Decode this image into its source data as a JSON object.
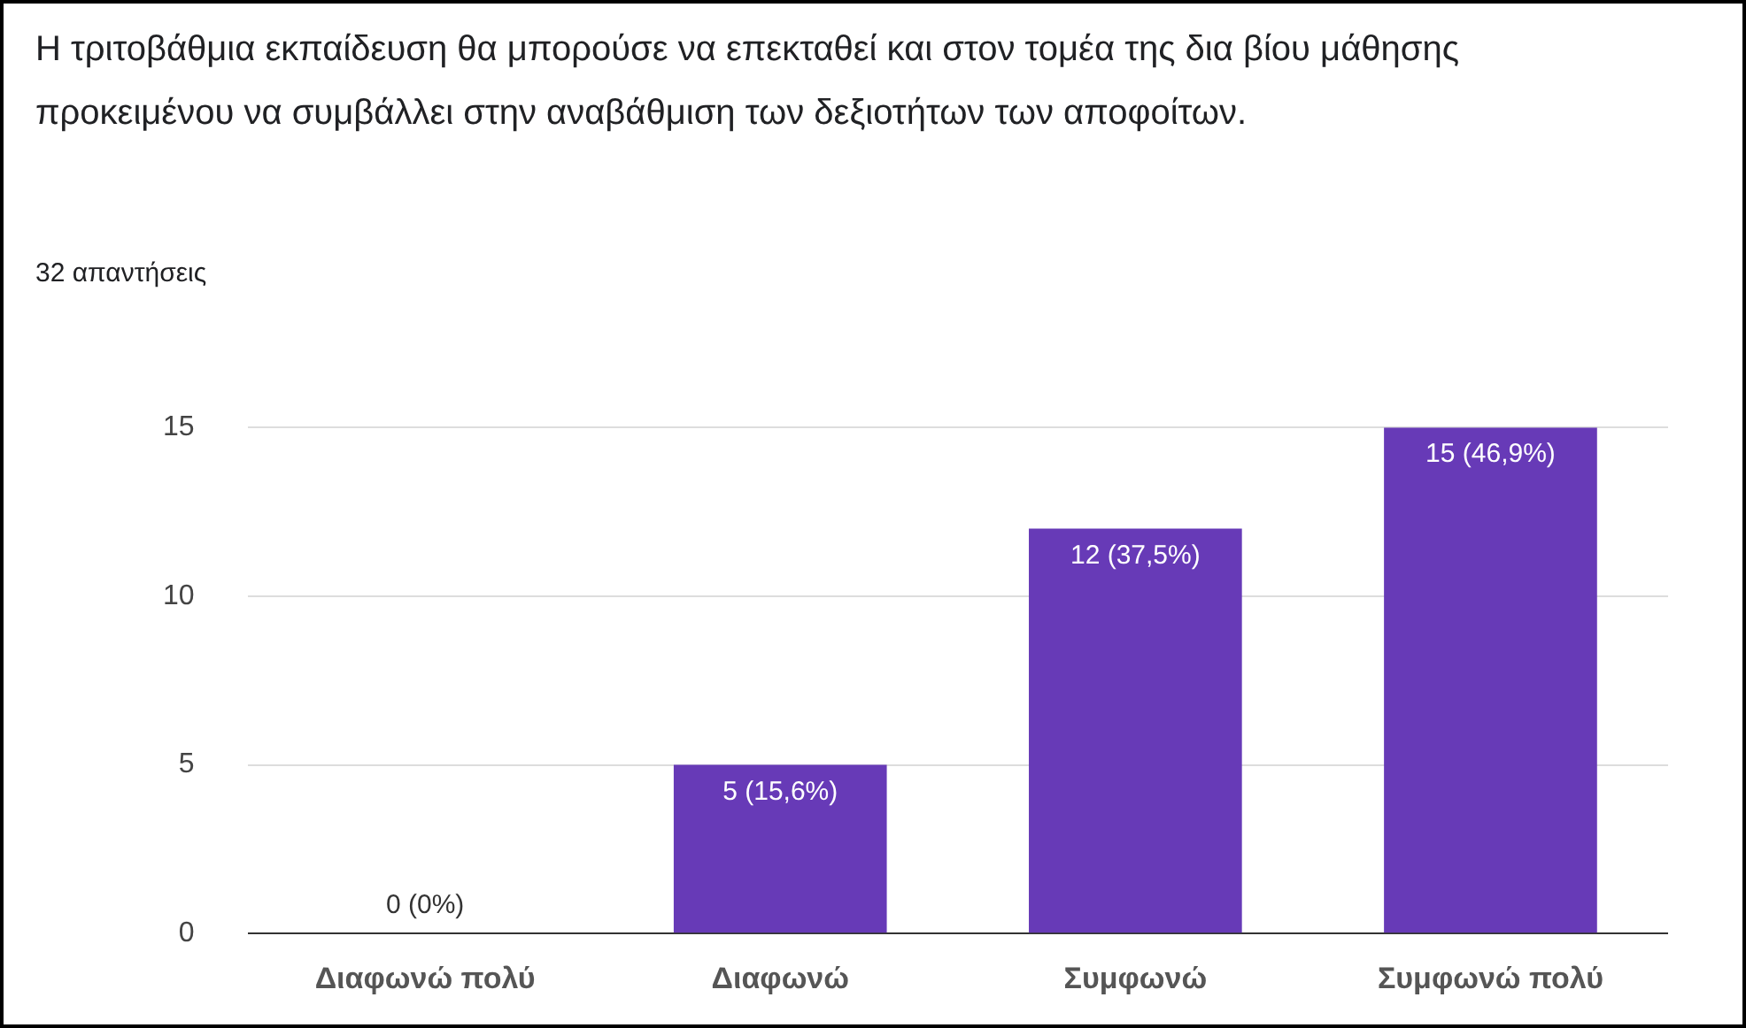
{
  "chart_data": {
    "type": "bar",
    "title": "Η τριτοβάθμια εκπαίδευση θα μπορούσε να επεκταθεί και στον τομέα της δια βίου μάθησης προκειμένου να συμβάλλει στην αναβάθμιση των δεξιοτήτων των αποφοίτων.",
    "subtitle": "32 απαντήσεις",
    "categories": [
      "Διαφωνώ πολύ",
      "Διαφωνώ",
      "Συμφωνώ",
      "Συμφωνώ πολύ"
    ],
    "values": [
      0,
      5,
      12,
      15
    ],
    "color": "#673ab7",
    "value_labels": [
      "0 (0%)",
      "5 (15,6%)",
      "12 (37,5%)",
      "15 (46,9%)"
    ],
    "ylim": [
      0,
      15
    ],
    "yticks": [
      0,
      5,
      10,
      15
    ],
    "grid": "y",
    "legend": false
  }
}
